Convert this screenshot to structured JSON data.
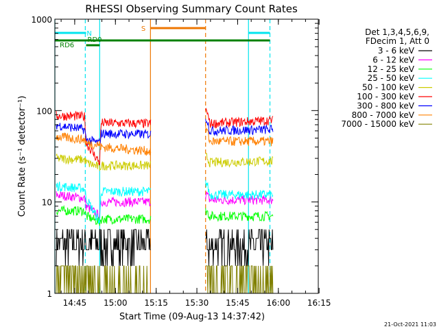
{
  "chart_data": {
    "type": "line",
    "title": "RHESSI Observing Summary Count Rates",
    "xlabel": "Start Time (09-Aug-13 14:37:42)",
    "ylabel": "Count Rate (s⁻¹ detector⁻¹)",
    "yscale": "log",
    "ylim": [
      1,
      1000
    ],
    "xlim_minutes": [
      0,
      97
    ],
    "x_ticks": [
      "14:45",
      "15:00",
      "15:15",
      "15:30",
      "15:45",
      "16:00",
      "16:15"
    ],
    "x_tick_minutes": [
      7.3,
      22.3,
      37.3,
      52.3,
      67.3,
      82.3,
      97.3
    ],
    "y_ticks": [
      "1",
      "10",
      "100",
      "1000"
    ],
    "y_tick_values": [
      1,
      10,
      100,
      1000
    ],
    "legend": {
      "header": [
        "Det 1,3,4,5,6,9,",
        "FDecim 1, Att 0"
      ],
      "position": "top-right"
    },
    "footer_date": "21-Oct-2021 11:03",
    "flags": [
      {
        "label": "N",
        "color": "#00e5ee",
        "segments": [
          [
            0,
            11.5
          ],
          [
            71.3,
            79.2
          ]
        ]
      },
      {
        "label": "RD0",
        "color": "#008000",
        "segments": [
          [
            11.5,
            16.5
          ]
        ]
      },
      {
        "label": "RD6",
        "color": "#008000",
        "segments": [
          [
            0,
            79.2
          ]
        ]
      },
      {
        "label": "S",
        "color": "#ee7600",
        "segments": [
          [
            35.2,
            55.5
          ]
        ]
      }
    ],
    "markers": [
      {
        "minute": 0,
        "color": "#00e5ee",
        "style": "solid"
      },
      {
        "minute": 11.2,
        "color": "#00e5ee",
        "style": "dashed"
      },
      {
        "minute": 16.5,
        "color": "#00e5ee",
        "style": "solid"
      },
      {
        "minute": 35.2,
        "color": "#ee7600",
        "style": "solid"
      },
      {
        "minute": 55.5,
        "color": "#ee7600",
        "style": "dashed"
      },
      {
        "minute": 71.3,
        "color": "#00e5ee",
        "style": "solid"
      },
      {
        "minute": 79.2,
        "color": "#00e5ee",
        "style": "dashed"
      }
    ],
    "series": [
      {
        "name": "3 - 6 keV",
        "color": "#000000",
        "x": [
          0,
          11,
          11.5,
          16.5,
          17,
          35,
          56,
          57,
          79
        ],
        "values": [
          3.5,
          3.5,
          3.5,
          3.5,
          3.4,
          3.5,
          3.5,
          3.3,
          3.3
        ]
      },
      {
        "name": "6 - 12 keV",
        "color": "#ff00ff",
        "x": [
          0,
          11,
          11.5,
          16.5,
          17,
          35,
          56,
          57,
          79
        ],
        "values": [
          12,
          11,
          9,
          7,
          10,
          10,
          12,
          10.5,
          10.5
        ]
      },
      {
        "name": "12 - 25 keV",
        "color": "#00ff00",
        "x": [
          0,
          11,
          11.5,
          16.5,
          17,
          35,
          56,
          57,
          79
        ],
        "values": [
          8,
          8,
          7,
          6,
          6.5,
          6.5,
          8,
          7,
          7
        ]
      },
      {
        "name": "25 - 50 keV",
        "color": "#00ffff",
        "x": [
          0,
          11,
          11.5,
          16.5,
          17,
          35,
          56,
          57,
          79
        ],
        "values": [
          15,
          14,
          11,
          6,
          13,
          13,
          16,
          12,
          12
        ]
      },
      {
        "name": "50 - 100 keV",
        "color": "#cccc00",
        "x": [
          0,
          11,
          11.5,
          16.5,
          17,
          35,
          56,
          57,
          79
        ],
        "values": [
          30,
          29,
          27,
          24,
          25,
          25,
          31,
          27,
          28
        ]
      },
      {
        "name": "100 - 300 keV",
        "color": "#ff0000",
        "x": [
          0,
          11,
          11.5,
          16.5,
          17,
          35,
          56,
          57,
          79
        ],
        "values": [
          88,
          86,
          44,
          27,
          73,
          72,
          100,
          72,
          78
        ]
      },
      {
        "name": "300 - 800 keV",
        "color": "#0000ff",
        "x": [
          0,
          11,
          11.5,
          16.5,
          17,
          35,
          56,
          57,
          79
        ],
        "values": [
          70,
          62,
          48,
          44,
          56,
          55,
          82,
          60,
          62
        ]
      },
      {
        "name": "800 - 7000 keV",
        "color": "#ff8000",
        "x": [
          0,
          11,
          11.5,
          16.5,
          17,
          35,
          56,
          57,
          79
        ],
        "values": [
          52,
          48,
          44,
          42,
          40,
          36,
          62,
          46,
          46
        ]
      },
      {
        "name": "7000 - 15000 keV",
        "color": "#808000",
        "x": [
          0,
          11,
          11.5,
          16.5,
          17,
          35,
          56,
          57,
          79
        ],
        "values": [
          1.6,
          1.6,
          1.6,
          1.4,
          1.3,
          1.3,
          1.6,
          1.3,
          1.3
        ]
      }
    ]
  }
}
